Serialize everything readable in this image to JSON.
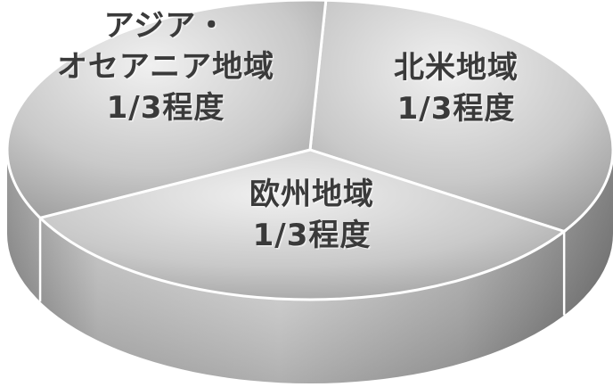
{
  "chart_data": {
    "type": "pie",
    "title": "",
    "slices": [
      {
        "lines": [
          "北米地域",
          "1/3程度"
        ],
        "value": 33.3
      },
      {
        "lines": [
          "欧州地域",
          "1/3程度"
        ],
        "value": 33.3
      },
      {
        "lines": [
          "アジア・",
          "オセアニア地域",
          "1/3程度"
        ],
        "value": 33.3
      }
    ],
    "colors": {
      "top_light": "#e8e8e8",
      "top_dark": "#9a9a9a",
      "side_light": "#d6d6d6",
      "side_dark": "#6e6e6e",
      "divider": "#ffffff",
      "text": "#3a3a3a"
    }
  }
}
